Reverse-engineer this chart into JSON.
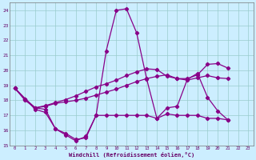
{
  "xlabel": "Windchill (Refroidissement éolien,°C)",
  "background_color": "#cceeff",
  "grid_color": "#99cccc",
  "line_color": "#880088",
  "xlim": [
    -0.5,
    23.5
  ],
  "ylim": [
    15,
    24.5
  ],
  "yticks": [
    15,
    16,
    17,
    18,
    19,
    20,
    21,
    22,
    23,
    24
  ],
  "xticks": [
    0,
    1,
    2,
    3,
    4,
    5,
    6,
    7,
    8,
    9,
    10,
    11,
    12,
    13,
    14,
    15,
    16,
    17,
    18,
    19,
    20,
    21,
    22,
    23
  ],
  "main_x": [
    0,
    1,
    2,
    3,
    4,
    5,
    6,
    7,
    8,
    9,
    10,
    11,
    12,
    13,
    14,
    15,
    16,
    17,
    18,
    19,
    20,
    21
  ],
  "main_y": [
    18.8,
    18.0,
    17.5,
    17.4,
    16.1,
    15.8,
    15.4,
    15.5,
    17.0,
    21.3,
    24.0,
    24.1,
    22.5,
    19.4,
    16.8,
    17.5,
    17.6,
    19.4,
    19.8,
    18.2,
    17.3,
    16.7
  ],
  "flat_x": [
    0,
    1,
    2,
    3,
    4,
    5,
    6,
    7,
    8,
    9,
    10,
    11,
    12,
    13,
    14,
    15,
    16,
    17,
    18,
    19,
    20,
    21
  ],
  "flat_y": [
    18.8,
    18.1,
    17.4,
    17.2,
    16.1,
    15.7,
    15.3,
    15.6,
    17.0,
    17.0,
    17.0,
    17.0,
    17.0,
    17.0,
    16.8,
    17.1,
    17.0,
    17.0,
    17.0,
    16.8,
    16.8,
    16.7
  ],
  "slope1_x": [
    0,
    1,
    2,
    3,
    4,
    5,
    6,
    7,
    8,
    9,
    10,
    11,
    12,
    13,
    14,
    15,
    16,
    17,
    18,
    19,
    20,
    21
  ],
  "slope1_y": [
    18.8,
    18.1,
    17.5,
    17.6,
    17.8,
    17.9,
    18.0,
    18.15,
    18.35,
    18.55,
    18.75,
    19.0,
    19.25,
    19.45,
    19.6,
    19.7,
    19.45,
    19.35,
    19.5,
    19.65,
    19.5,
    19.45
  ],
  "slope2_x": [
    0,
    1,
    2,
    3,
    4,
    5,
    6,
    7,
    8,
    9,
    10,
    11,
    12,
    13,
    14,
    15,
    16,
    17,
    18,
    19,
    20,
    21
  ],
  "slope2_y": [
    18.8,
    18.1,
    17.5,
    17.65,
    17.85,
    18.05,
    18.3,
    18.6,
    18.9,
    19.1,
    19.35,
    19.65,
    19.9,
    20.1,
    20.05,
    19.6,
    19.45,
    19.45,
    19.7,
    20.4,
    20.45,
    20.15
  ]
}
